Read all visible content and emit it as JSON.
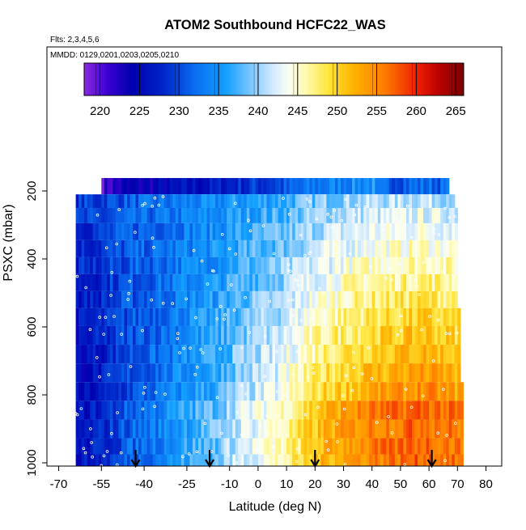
{
  "chart_data": {
    "type": "heatmap",
    "title": "ATOM2 Southbound HCFC22_WAS",
    "subtitle_flights": "Flts: 2,3,4,5,6",
    "subtitle_dates": "MMDD: 0129,0201,0203,0205,0210",
    "xlabel": "Latitude (deg N)",
    "ylabel": "PSXC (mbar)",
    "xlim": [
      -70,
      85
    ],
    "ylim": [
      1010,
      160
    ],
    "x_ticks": [
      -70,
      -55,
      -40,
      -25,
      -10,
      0,
      10,
      20,
      30,
      40,
      50,
      60,
      70,
      80
    ],
    "y_ticks": [
      200,
      400,
      600,
      800,
      1000
    ],
    "colorbar": {
      "range": [
        218,
        266
      ],
      "ticks": [
        220,
        225,
        230,
        235,
        240,
        245,
        250,
        255,
        260,
        265
      ],
      "stops": [
        {
          "v": 218,
          "c": "#8a2be2"
        },
        {
          "v": 221,
          "c": "#3a00d0"
        },
        {
          "v": 224,
          "c": "#0000b0"
        },
        {
          "v": 228,
          "c": "#0025c8"
        },
        {
          "v": 232,
          "c": "#0a6ef0"
        },
        {
          "v": 236,
          "c": "#14a0ff"
        },
        {
          "v": 239,
          "c": "#7ac6ff"
        },
        {
          "v": 242,
          "c": "#d6ecff"
        },
        {
          "v": 244,
          "c": "#fcfff0"
        },
        {
          "v": 246,
          "c": "#fffab0"
        },
        {
          "v": 249,
          "c": "#ffe438"
        },
        {
          "v": 252,
          "c": "#ffb400"
        },
        {
          "v": 256,
          "c": "#ff7c00"
        },
        {
          "v": 260,
          "c": "#f02000"
        },
        {
          "v": 263,
          "c": "#b80000"
        },
        {
          "v": 266,
          "c": "#7a0000"
        }
      ]
    },
    "layers": [
      {
        "p": 190,
        "lat_min": -55,
        "lat_max": 67
      },
      {
        "p": 230,
        "lat_min": -64,
        "lat_max": 69
      },
      {
        "p": 270,
        "lat_min": -64,
        "lat_max": 70
      },
      {
        "p": 320,
        "lat_min": -64,
        "lat_max": 70
      },
      {
        "p": 370,
        "lat_min": -64,
        "lat_max": 70
      },
      {
        "p": 420,
        "lat_min": -64,
        "lat_max": 70
      },
      {
        "p": 470,
        "lat_min": -64,
        "lat_max": 70
      },
      {
        "p": 520,
        "lat_min": -64,
        "lat_max": 70
      },
      {
        "p": 570,
        "lat_min": -64,
        "lat_max": 71
      },
      {
        "p": 625,
        "lat_min": -64,
        "lat_max": 71
      },
      {
        "p": 680,
        "lat_min": -64,
        "lat_max": 71
      },
      {
        "p": 735,
        "lat_min": -64,
        "lat_max": 71
      },
      {
        "p": 790,
        "lat_min": -64,
        "lat_max": 72
      },
      {
        "p": 845,
        "lat_min": -64,
        "lat_max": 72
      },
      {
        "p": 900,
        "lat_min": -64,
        "lat_max": 72
      },
      {
        "p": 955,
        "lat_min": -64,
        "lat_max": 72
      },
      {
        "p": 995,
        "lat_min": -64,
        "lat_max": 72
      }
    ],
    "profile": [
      {
        "lat": -64,
        "v": 224
      },
      {
        "lat": -55,
        "v": 226
      },
      {
        "lat": -45,
        "v": 230
      },
      {
        "lat": -35,
        "v": 232
      },
      {
        "lat": -25,
        "v": 235
      },
      {
        "lat": -15,
        "v": 237
      },
      {
        "lat": -8,
        "v": 240
      },
      {
        "lat": 0,
        "v": 242
      },
      {
        "lat": 8,
        "v": 244
      },
      {
        "lat": 15,
        "v": 247
      },
      {
        "lat": 22,
        "v": 250
      },
      {
        "lat": 30,
        "v": 252
      },
      {
        "lat": 40,
        "v": 254
      },
      {
        "lat": 50,
        "v": 255
      },
      {
        "lat": 58,
        "v": 256
      },
      {
        "lat": 65,
        "v": 255
      },
      {
        "lat": 72,
        "v": 254
      }
    ],
    "arrows_lat": [
      -43,
      -17,
      20,
      61
    ]
  }
}
